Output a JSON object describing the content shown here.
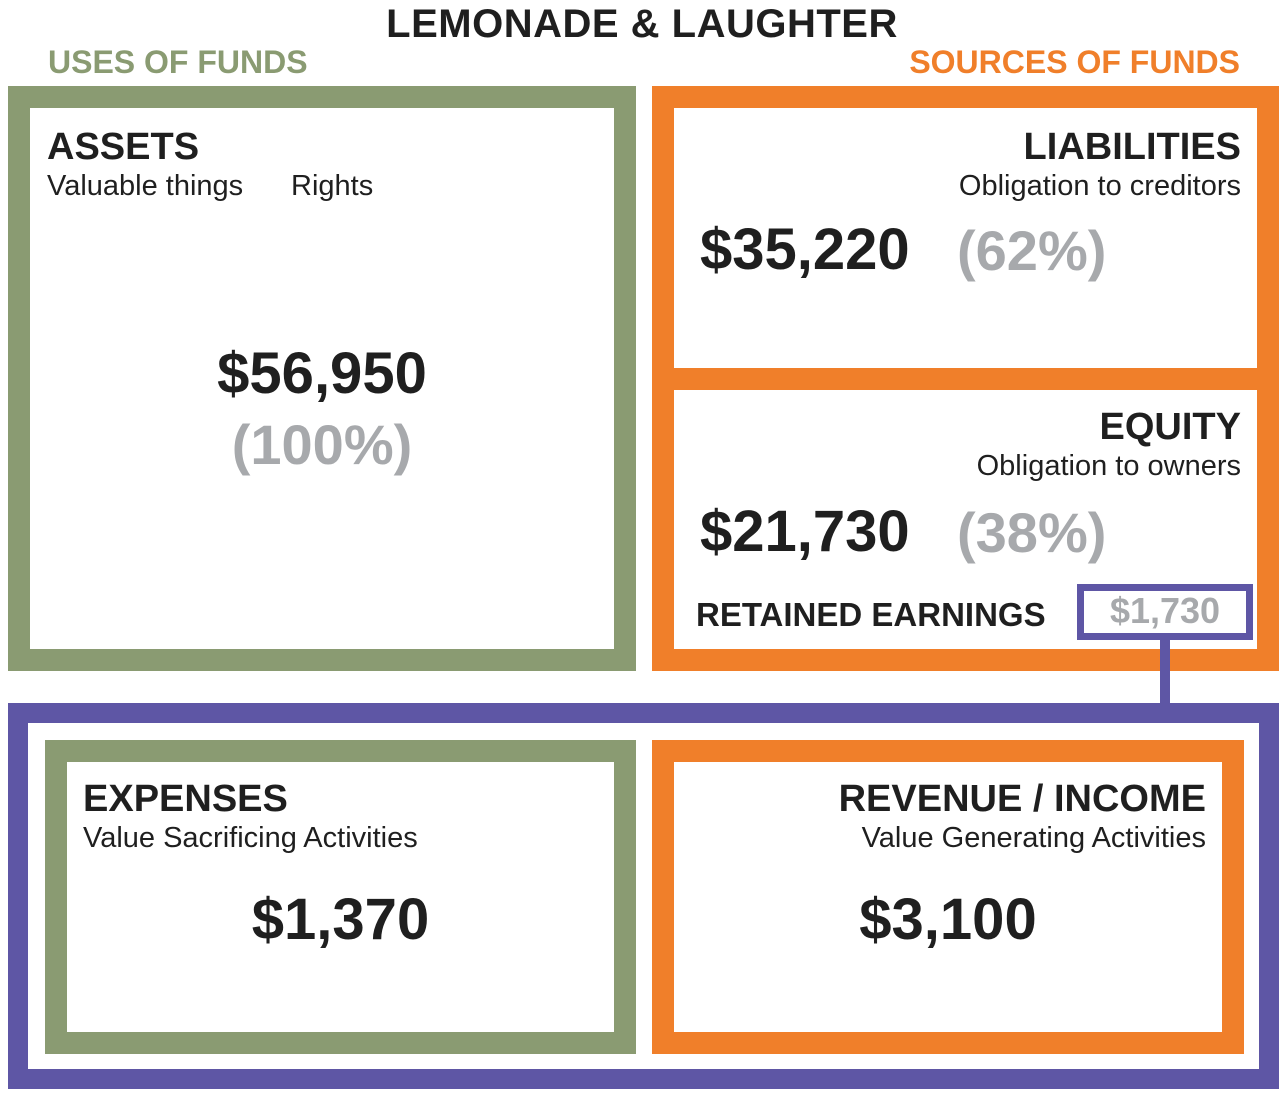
{
  "title": "LEMONADE & LAUGHTER",
  "uses_label": "USES OF FUNDS",
  "sources_label": "SOURCES OF FUNDS",
  "assets": {
    "title": "ASSETS",
    "subtitle_1": "Valuable things",
    "subtitle_2": "Rights",
    "amount": "$56,950",
    "percent": "(100%)"
  },
  "liabilities": {
    "title": "LIABILITIES",
    "subtitle": "Obligation to creditors",
    "amount": "$35,220",
    "percent": "(62%)"
  },
  "equity": {
    "title": "EQUITY",
    "subtitle": "Obligation to owners",
    "amount": "$21,730",
    "percent": "(38%)",
    "retained_label": "RETAINED EARNINGS",
    "retained_value": "$1,730"
  },
  "expenses": {
    "title": "EXPENSES",
    "subtitle": "Value Sacrificing Activities",
    "amount": "$1,370"
  },
  "revenue": {
    "title": "REVENUE / INCOME",
    "subtitle": "Value Generating Activities",
    "amount": "$3,100"
  },
  "colors": {
    "uses": "#8a9b72",
    "sources": "#f07f2a",
    "income_statement": "#5e56a5",
    "percent_text": "#a7a9ac"
  }
}
